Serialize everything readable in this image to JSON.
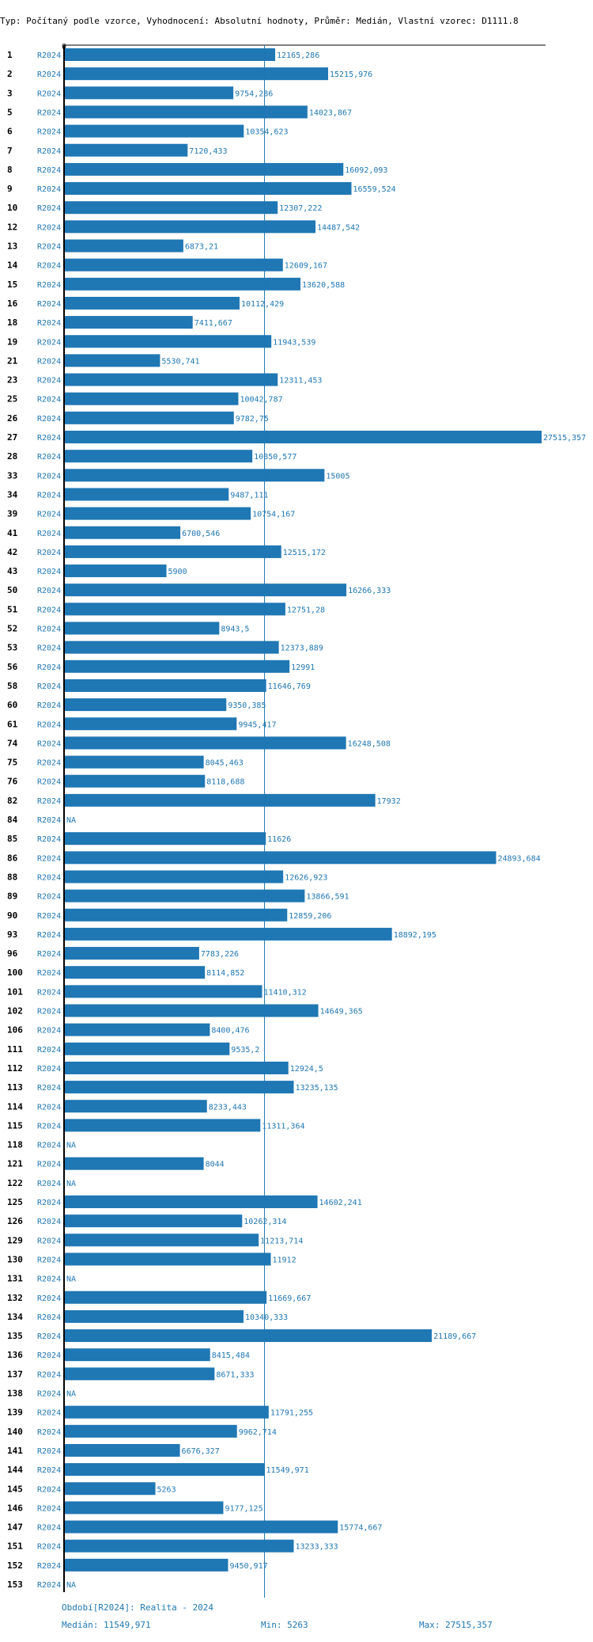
{
  "title": "Typ: Počítaný podle vzorce, Vyhodnocení: Absolutní hodnoty, Průměr: Medián, Vlastní vzorec: D1111.8",
  "colors": {
    "bar": "#1f77b4",
    "text": "#1f77b4",
    "axis": "#000000"
  },
  "chart_data": {
    "type": "bar",
    "orientation": "horizontal",
    "series_label": "R2024",
    "axis_zero_label": "0",
    "xlim": [
      0,
      27515.357
    ],
    "reference_line": 11549.971,
    "na_label": "NA",
    "categories": [
      "1",
      "2",
      "3",
      "5",
      "6",
      "7",
      "8",
      "9",
      "10",
      "12",
      "13",
      "14",
      "15",
      "16",
      "18",
      "19",
      "21",
      "23",
      "25",
      "26",
      "27",
      "28",
      "33",
      "34",
      "39",
      "41",
      "42",
      "43",
      "50",
      "51",
      "52",
      "53",
      "56",
      "58",
      "60",
      "61",
      "74",
      "75",
      "76",
      "82",
      "84",
      "85",
      "86",
      "88",
      "89",
      "90",
      "93",
      "96",
      "100",
      "101",
      "102",
      "106",
      "111",
      "112",
      "113",
      "114",
      "115",
      "118",
      "121",
      "122",
      "125",
      "126",
      "129",
      "130",
      "131",
      "132",
      "134",
      "135",
      "136",
      "137",
      "138",
      "139",
      "140",
      "141",
      "144",
      "145",
      "146",
      "147",
      "151",
      "152",
      "153"
    ],
    "values": [
      12165.286,
      15215.976,
      9754.286,
      14023.867,
      10354.623,
      7120.433,
      16092.093,
      16559.524,
      12307.222,
      14487.542,
      6873.21,
      12609.167,
      13620.588,
      10112.429,
      7411.667,
      11943.539,
      5530.741,
      12311.453,
      10042.787,
      9782.75,
      27515.357,
      10850.577,
      15005,
      9487.111,
      10754.167,
      6700.546,
      12515.172,
      5900,
      16266.333,
      12751.28,
      8943.5,
      12373.889,
      12991,
      11646.769,
      9350.385,
      9945.417,
      16248.508,
      8045.463,
      8118.688,
      17932,
      null,
      11626,
      24893.684,
      12626.923,
      13866.591,
      12859.206,
      18892.195,
      7783.226,
      8114.852,
      11410.312,
      14649.365,
      8400.476,
      9535.2,
      12924.5,
      13235.135,
      8233.443,
      11311.364,
      null,
      8044,
      null,
      14602.241,
      10262.314,
      11213.714,
      11912,
      null,
      11669.667,
      10340.333,
      21189.667,
      8415.484,
      8671.333,
      null,
      11791.255,
      9962.714,
      6676.327,
      11549.971,
      5263,
      9177.125,
      15774.667,
      13233.333,
      9450.917,
      null
    ],
    "labels": [
      "12165,286",
      "15215,976",
      "9754,286",
      "14023,867",
      "10354,623",
      "7120,433",
      "16092,093",
      "16559,524",
      "12307,222",
      "14487,542",
      "6873,21",
      "12609,167",
      "13620,588",
      "10112,429",
      "7411,667",
      "11943,539",
      "5530,741",
      "12311,453",
      "10042,787",
      "9782,75",
      "27515,357",
      "10850,577",
      "15005",
      "9487,111",
      "10754,167",
      "6700,546",
      "12515,172",
      "5900",
      "16266,333",
      "12751,28",
      "8943,5",
      "12373,889",
      "12991",
      "11646,769",
      "9350,385",
      "9945,417",
      "16248,508",
      "8045,463",
      "8118,688",
      "17932",
      "NA",
      "11626",
      "24893,684",
      "12626,923",
      "13866,591",
      "12859,206",
      "18892,195",
      "7783,226",
      "8114,852",
      "11410,312",
      "14649,365",
      "8400,476",
      "9535,2",
      "12924,5",
      "13235,135",
      "8233,443",
      "11311,364",
      "NA",
      "8044",
      "NA",
      "14602,241",
      "10262,314",
      "11213,714",
      "11912",
      "NA",
      "11669,667",
      "10340,333",
      "21189,667",
      "8415,484",
      "8671,333",
      "NA",
      "11791,255",
      "9962,714",
      "6676,327",
      "11549,971",
      "5263",
      "9177,125",
      "15774,667",
      "13233,333",
      "9450,917",
      "NA"
    ]
  },
  "footer": {
    "period": "Období[R2024]: Realita - 2024",
    "median": "Medián: 11549,971",
    "min": "Min: 5263",
    "max": "Max: 27515,357"
  }
}
